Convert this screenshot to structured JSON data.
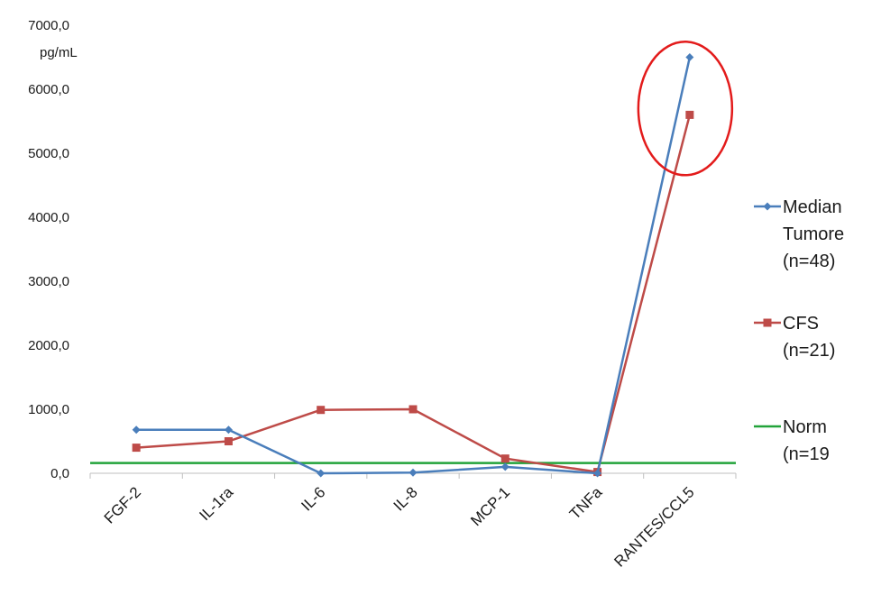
{
  "chart_data": {
    "type": "line",
    "unit_label": "pg/mL",
    "categories": [
      "FGF-2",
      "IL-1ra",
      "IL-6",
      "IL-8",
      "MCP-1",
      "TNFa",
      "RANTES/CCL5"
    ],
    "ylim": [
      0,
      7000
    ],
    "yticks": [
      0,
      1000,
      2000,
      3000,
      4000,
      5000,
      6000,
      7000
    ],
    "ytick_labels": [
      "0,0",
      "1000,0",
      "2000,0",
      "3000,0",
      "4000,0",
      "5000,0",
      "6000,0",
      "7000,0"
    ],
    "grid": false,
    "legend_position": "right",
    "series": [
      {
        "name_lines": [
          "Median",
          "Tumore",
          "(n=48)"
        ],
        "color": "#4a7ebb",
        "marker": "diamond",
        "values": [
          680,
          680,
          0,
          10,
          100,
          0,
          6500
        ]
      },
      {
        "name_lines": [
          "CFS",
          "(n=21)"
        ],
        "color": "#be4b48",
        "marker": "square",
        "values": [
          400,
          500,
          990,
          1000,
          230,
          20,
          5600
        ]
      }
    ],
    "reference_line": {
      "name_lines": [
        "Norm",
        "(n=19"
      ],
      "color": "#22a33a",
      "value": 160
    },
    "highlight": {
      "shape": "ellipse",
      "color": "#e31b1b",
      "category": "RANTES/CCL5",
      "y_center": 5700
    }
  }
}
